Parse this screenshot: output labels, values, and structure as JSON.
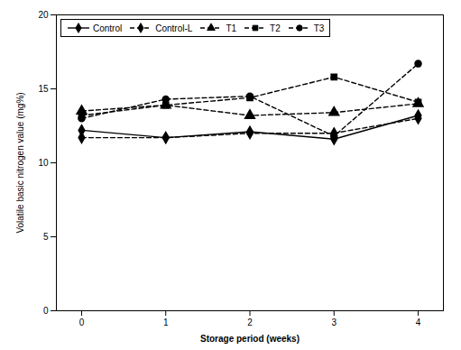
{
  "chart_data": {
    "type": "line",
    "x": [
      0,
      1,
      2,
      3,
      4
    ],
    "series": [
      {
        "name": "Control",
        "color": "#000000",
        "marker": "diamond",
        "line_style": "solid",
        "values": [
          12.2,
          11.7,
          12.1,
          11.6,
          13.2
        ]
      },
      {
        "name": "Control-L",
        "color": "#000000",
        "marker": "diamond",
        "line_style": "dashed",
        "values": [
          11.7,
          11.7,
          12.0,
          12.0,
          13.0
        ]
      },
      {
        "name": "T1",
        "color": "#000000",
        "marker": "triangle",
        "line_style": "dashed",
        "values": [
          13.5,
          13.9,
          13.2,
          13.4,
          14.0
        ]
      },
      {
        "name": "T2",
        "color": "#000000",
        "marker": "square",
        "line_style": "dashed",
        "values": [
          13.2,
          13.9,
          14.4,
          15.8,
          14.1
        ]
      },
      {
        "name": "T3",
        "color": "#000000",
        "marker": "circle",
        "line_style": "dashed",
        "values": [
          13.0,
          14.3,
          14.5,
          11.8,
          16.7
        ]
      }
    ],
    "xlabel": "Storage period (weeks)",
    "ylabel": "Volatile basic nitrogen value (mg%)",
    "xlim": [
      -0.3,
      4.3
    ],
    "ylim": [
      0,
      20
    ],
    "xticks": [
      0,
      1,
      2,
      3,
      4
    ],
    "yticks": [
      0,
      5,
      10,
      15,
      20
    ],
    "legend": "upper left",
    "grid": false
  }
}
